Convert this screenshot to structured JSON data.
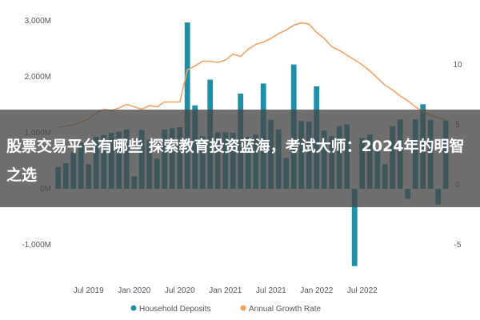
{
  "chart_data": {
    "type": "bar",
    "series": [
      {
        "name": "Household Deposits",
        "kind": "bar",
        "axis": "left",
        "color": "#1f8fa8",
        "values": [
          390,
          460,
          650,
          820,
          440,
          930,
          960,
          1000,
          1020,
          1060,
          220,
          1050,
          880,
          540,
          1060,
          1080,
          1100,
          2970,
          1490,
          940,
          1950,
          1010,
          1010,
          1000,
          1700,
          930,
          970,
          1880,
          1230,
          1060,
          550,
          2220,
          1210,
          1200,
          1830,
          1040,
          940,
          1120,
          1150,
          -1380,
          910,
          970,
          720,
          440,
          1120,
          1240,
          -180,
          1240,
          1510,
          1230,
          -280,
          1220
        ]
      },
      {
        "name": "Annual Growth Rate",
        "kind": "line",
        "axis": "right",
        "color": "#f4a261",
        "values": [
          4.8,
          4.9,
          5.0,
          5.2,
          5.5,
          6.0,
          6.3,
          6.2,
          6.4,
          6.7,
          6.5,
          6.3,
          6.6,
          6.5,
          6.9,
          6.9,
          6.9,
          9.6,
          9.9,
          10.3,
          10.3,
          10.2,
          10.4,
          10.9,
          10.7,
          11.3,
          11.7,
          11.9,
          12.2,
          12.6,
          12.9,
          13.3,
          13.5,
          13.4,
          12.7,
          12.2,
          11.5,
          11.2,
          10.8,
          10.4,
          10.0,
          9.5,
          8.9,
          8.3,
          7.9,
          7.4,
          7.0,
          6.5,
          6.1,
          5.8,
          5.6,
          5.4
        ]
      }
    ],
    "x_tick_labels": [
      "Jul 2019",
      "Jan 2020",
      "Jul 2020",
      "Jan 2021",
      "Jul 2021",
      "Jan 2022",
      "Jul 2022"
    ],
    "y_left_tick_labels": [
      "3,000M",
      "2,000M",
      "1,000M",
      "0M",
      "-1,000M"
    ],
    "y_left_ticks": [
      3000,
      2000,
      1000,
      0,
      -1000
    ],
    "y_left_range": [
      -1600,
      3200
    ],
    "y_right_tick_labels": [
      "10",
      "5",
      "0",
      "-5"
    ],
    "y_right_ticks": [
      10,
      5,
      0,
      -5
    ],
    "y_right_range": [
      -7.8,
      14.6
    ],
    "legend_position": "bottom-center",
    "grid": false
  },
  "overlay": {
    "headline": "股票交易平台有哪些 探索教育投资蓝海，考试大师：2024年的明智之选"
  }
}
